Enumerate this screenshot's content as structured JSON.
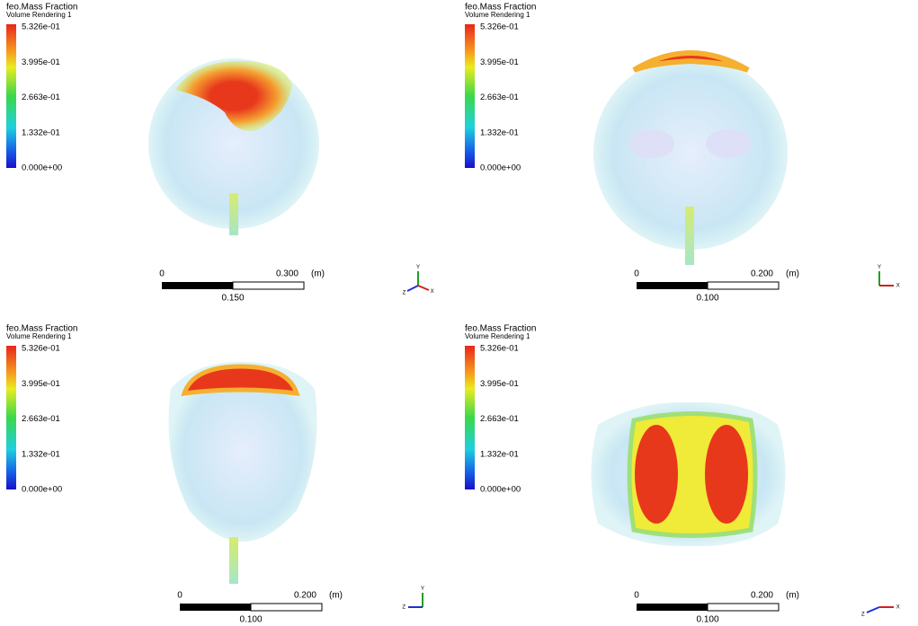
{
  "panels": [
    {
      "title": "feo.Mass Fraction",
      "subtitle": "Volume Rendering 1",
      "legend_labels": [
        "5.326e-01",
        "3.995e-01",
        "2.663e-01",
        "1.332e-01",
        "0.000e+00"
      ],
      "scale": {
        "start": "0",
        "end": "0.300",
        "unit": "(m)",
        "mid": "0.150"
      },
      "axes": [
        "Y",
        "Z",
        "X"
      ]
    },
    {
      "title": "feo.Mass Fraction",
      "subtitle": "Volume Rendering 1",
      "legend_labels": [
        "5.326e-01",
        "3.995e-01",
        "2.663e-01",
        "1.332e-01",
        "0.000e+00"
      ],
      "scale": {
        "start": "0",
        "end": "0.200",
        "unit": "(m)",
        "mid": "0.100"
      },
      "axes": [
        "Y",
        "X"
      ]
    },
    {
      "title": "feo.Mass Fraction",
      "subtitle": "Volume Rendering 1",
      "legend_labels": [
        "5.326e-01",
        "3.995e-01",
        "2.663e-01",
        "1.332e-01",
        "0.000e+00"
      ],
      "scale": {
        "start": "0",
        "end": "0.200",
        "unit": "(m)",
        "mid": "0.100"
      },
      "axes": [
        "Y",
        "Z"
      ]
    },
    {
      "title": "feo.Mass Fraction",
      "subtitle": "Volume Rendering 1",
      "legend_labels": [
        "5.326e-01",
        "3.995e-01",
        "2.663e-01",
        "1.332e-01",
        "0.000e+00"
      ],
      "scale": {
        "start": "0",
        "end": "0.200",
        "unit": "(m)",
        "mid": "0.100"
      },
      "axes": [
        "Z",
        "X"
      ]
    }
  ]
}
